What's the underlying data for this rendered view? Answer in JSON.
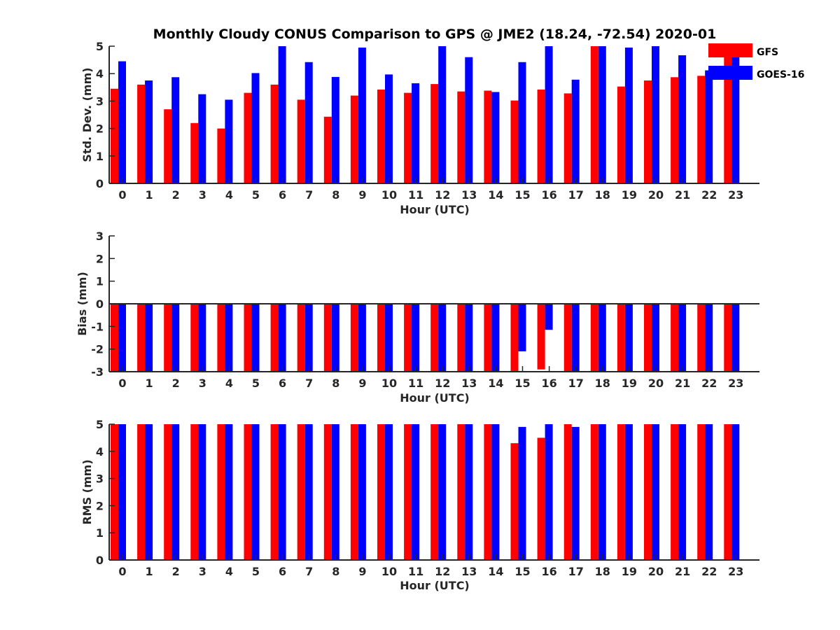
{
  "colors": {
    "GFS": "#ff0000",
    "GOES-16": "#0000ff",
    "axis": "#262626"
  },
  "chart_data": [
    {
      "type": "bar",
      "title": "Monthly Cloudy CONUS Comparison to GPS @ JME2 (18.24, -72.54) 2020-01",
      "xlabel": "Hour (UTC)",
      "ylabel": "Std. Dev. (mm)",
      "ylim": [
        0,
        5
      ],
      "yticks": [
        "0",
        "1",
        "2",
        "3",
        "4",
        "5"
      ],
      "categories": [
        "0",
        "1",
        "2",
        "3",
        "4",
        "5",
        "6",
        "7",
        "8",
        "9",
        "10",
        "11",
        "12",
        "13",
        "14",
        "15",
        "16",
        "17",
        "18",
        "19",
        "20",
        "21",
        "22",
        "23"
      ],
      "legend": {
        "placement": "top-right",
        "entries": [
          "GFS",
          "GOES-16"
        ]
      },
      "series": [
        {
          "name": "GFS",
          "values": [
            3.45,
            3.6,
            2.7,
            2.2,
            2.0,
            3.3,
            3.6,
            3.05,
            2.43,
            3.2,
            3.42,
            3.3,
            3.62,
            3.35,
            3.38,
            3.02,
            3.42,
            3.28,
            5.0,
            3.53,
            3.75,
            3.87,
            3.92,
            4.8
          ]
        },
        {
          "name": "GOES-16",
          "values": [
            4.45,
            3.75,
            3.87,
            3.25,
            3.05,
            4.02,
            5.0,
            4.42,
            3.88,
            4.95,
            3.97,
            3.65,
            5.0,
            4.6,
            3.33,
            4.42,
            5.0,
            3.78,
            5.0,
            4.95,
            5.0,
            4.67,
            4.12,
            4.7
          ]
        }
      ]
    },
    {
      "type": "bar",
      "xlabel": "Hour (UTC)",
      "ylabel": "Bias (mm)",
      "ylim": [
        -3,
        3
      ],
      "yticks": [
        "-3",
        "-2",
        "-1",
        "0",
        "1",
        "2",
        "3"
      ],
      "categories": [
        "0",
        "1",
        "2",
        "3",
        "4",
        "5",
        "6",
        "7",
        "8",
        "9",
        "10",
        "11",
        "12",
        "13",
        "14",
        "15",
        "16",
        "17",
        "18",
        "19",
        "20",
        "21",
        "22",
        "23"
      ],
      "series": [
        {
          "name": "GFS",
          "values": [
            -3,
            -3,
            -3,
            -3,
            -3,
            -3,
            -3,
            -3,
            -3,
            -3,
            -3,
            -3,
            -3,
            -3,
            -3,
            -3,
            -2.9,
            -3,
            -3,
            -3,
            -3,
            -3,
            -3,
            -3
          ]
        },
        {
          "name": "GOES-16",
          "values": [
            -3,
            -3,
            -3,
            -3,
            -3,
            -3,
            -3,
            -3,
            -3,
            -3,
            -3,
            -3,
            -3,
            -3,
            -3,
            -2.1,
            -1.15,
            -3,
            -3,
            -3,
            -3,
            -3,
            -3,
            -3
          ]
        }
      ]
    },
    {
      "type": "bar",
      "xlabel": "Hour (UTC)",
      "ylabel": "RMS (mm)",
      "ylim": [
        0,
        5
      ],
      "yticks": [
        "0",
        "1",
        "2",
        "3",
        "4",
        "5"
      ],
      "categories": [
        "0",
        "1",
        "2",
        "3",
        "4",
        "5",
        "6",
        "7",
        "8",
        "9",
        "10",
        "11",
        "12",
        "13",
        "14",
        "15",
        "16",
        "17",
        "18",
        "19",
        "20",
        "21",
        "22",
        "23"
      ],
      "series": [
        {
          "name": "GFS",
          "values": [
            5,
            5,
            5,
            5,
            5,
            5,
            5,
            5,
            5,
            5,
            5,
            5,
            5,
            5,
            5,
            4.3,
            4.5,
            5,
            5,
            5,
            5,
            5,
            5,
            5
          ]
        },
        {
          "name": "GOES-16",
          "values": [
            5,
            5,
            5,
            5,
            5,
            5,
            5,
            5,
            5,
            5,
            5,
            5,
            5,
            5,
            5,
            4.9,
            5,
            4.9,
            5,
            5,
            5,
            5,
            5,
            5
          ]
        }
      ]
    }
  ]
}
